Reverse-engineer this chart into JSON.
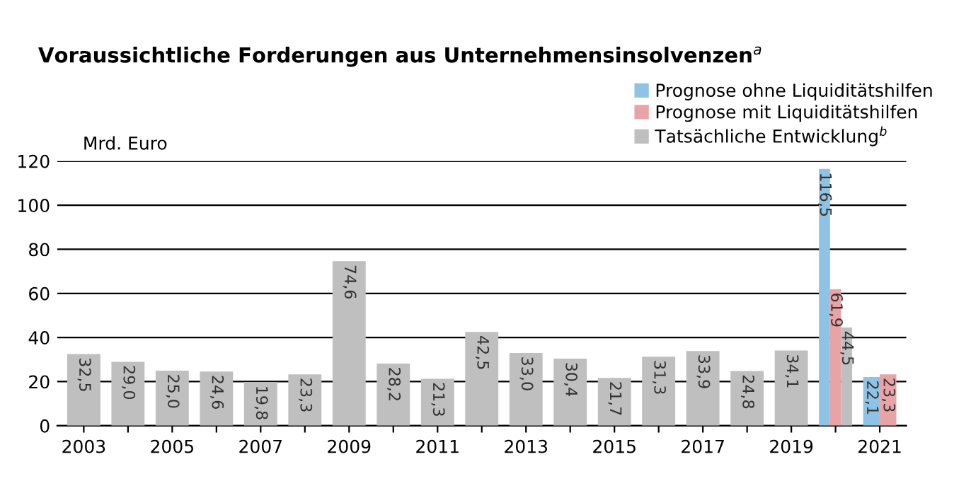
{
  "chart_data": {
    "type": "bar",
    "title": "Voraussichtliche Forderungen aus Unternehmensinsolvenzen$^{a}$",
    "ylabel": "Mrd. Euro",
    "categories": [
      "2003",
      null,
      "2005",
      null,
      "2007",
      null,
      "2009",
      null,
      "2011",
      null,
      "2013",
      null,
      "2015",
      null,
      "2017",
      null,
      "2019",
      null,
      "2021"
    ],
    "series": [
      {
        "name": "Prognose ohne Liquiditätshilfen",
        "color": "#8fc3e6",
        "values": [
          null,
          null,
          null,
          null,
          null,
          null,
          null,
          null,
          null,
          null,
          null,
          null,
          null,
          null,
          null,
          null,
          null,
          116.5,
          22.1
        ],
        "value_labels": [
          null,
          null,
          null,
          null,
          null,
          null,
          null,
          null,
          null,
          null,
          null,
          null,
          null,
          null,
          null,
          null,
          null,
          "116,5",
          "22,1"
        ]
      },
      {
        "name": "Prognose mit Liquiditätshilfen",
        "color": "#e8a3a6",
        "values": [
          null,
          null,
          null,
          null,
          null,
          null,
          null,
          null,
          null,
          null,
          null,
          null,
          null,
          null,
          null,
          null,
          null,
          61.9,
          23.3
        ],
        "value_labels": [
          null,
          null,
          null,
          null,
          null,
          null,
          null,
          null,
          null,
          null,
          null,
          null,
          null,
          null,
          null,
          null,
          null,
          "61,9",
          "23,3"
        ]
      },
      {
        "name": "Tatsächliche Entwicklung$^{b}$",
        "color": "#bfbfbf",
        "values": [
          32.5,
          29.0,
          25.0,
          24.6,
          19.8,
          23.3,
          74.6,
          28.2,
          21.3,
          42.5,
          33.0,
          30.4,
          21.7,
          31.3,
          33.9,
          24.8,
          34.1,
          44.5,
          null
        ],
        "value_labels": [
          "32,5",
          "29,0",
          "25,0",
          "24,6",
          "19,8",
          "23,3",
          "74,6",
          "28,2",
          "21,3",
          "42,5",
          "33,0",
          "30,4",
          "21,7",
          "31,3",
          "33,9",
          "24,8",
          "34,1",
          "44,5",
          null
        ]
      }
    ],
    "ylim": [
      0,
      120
    ],
    "yticks": [
      0,
      20,
      40,
      60,
      80,
      100,
      120
    ],
    "grid": "y",
    "legend": "top right"
  }
}
